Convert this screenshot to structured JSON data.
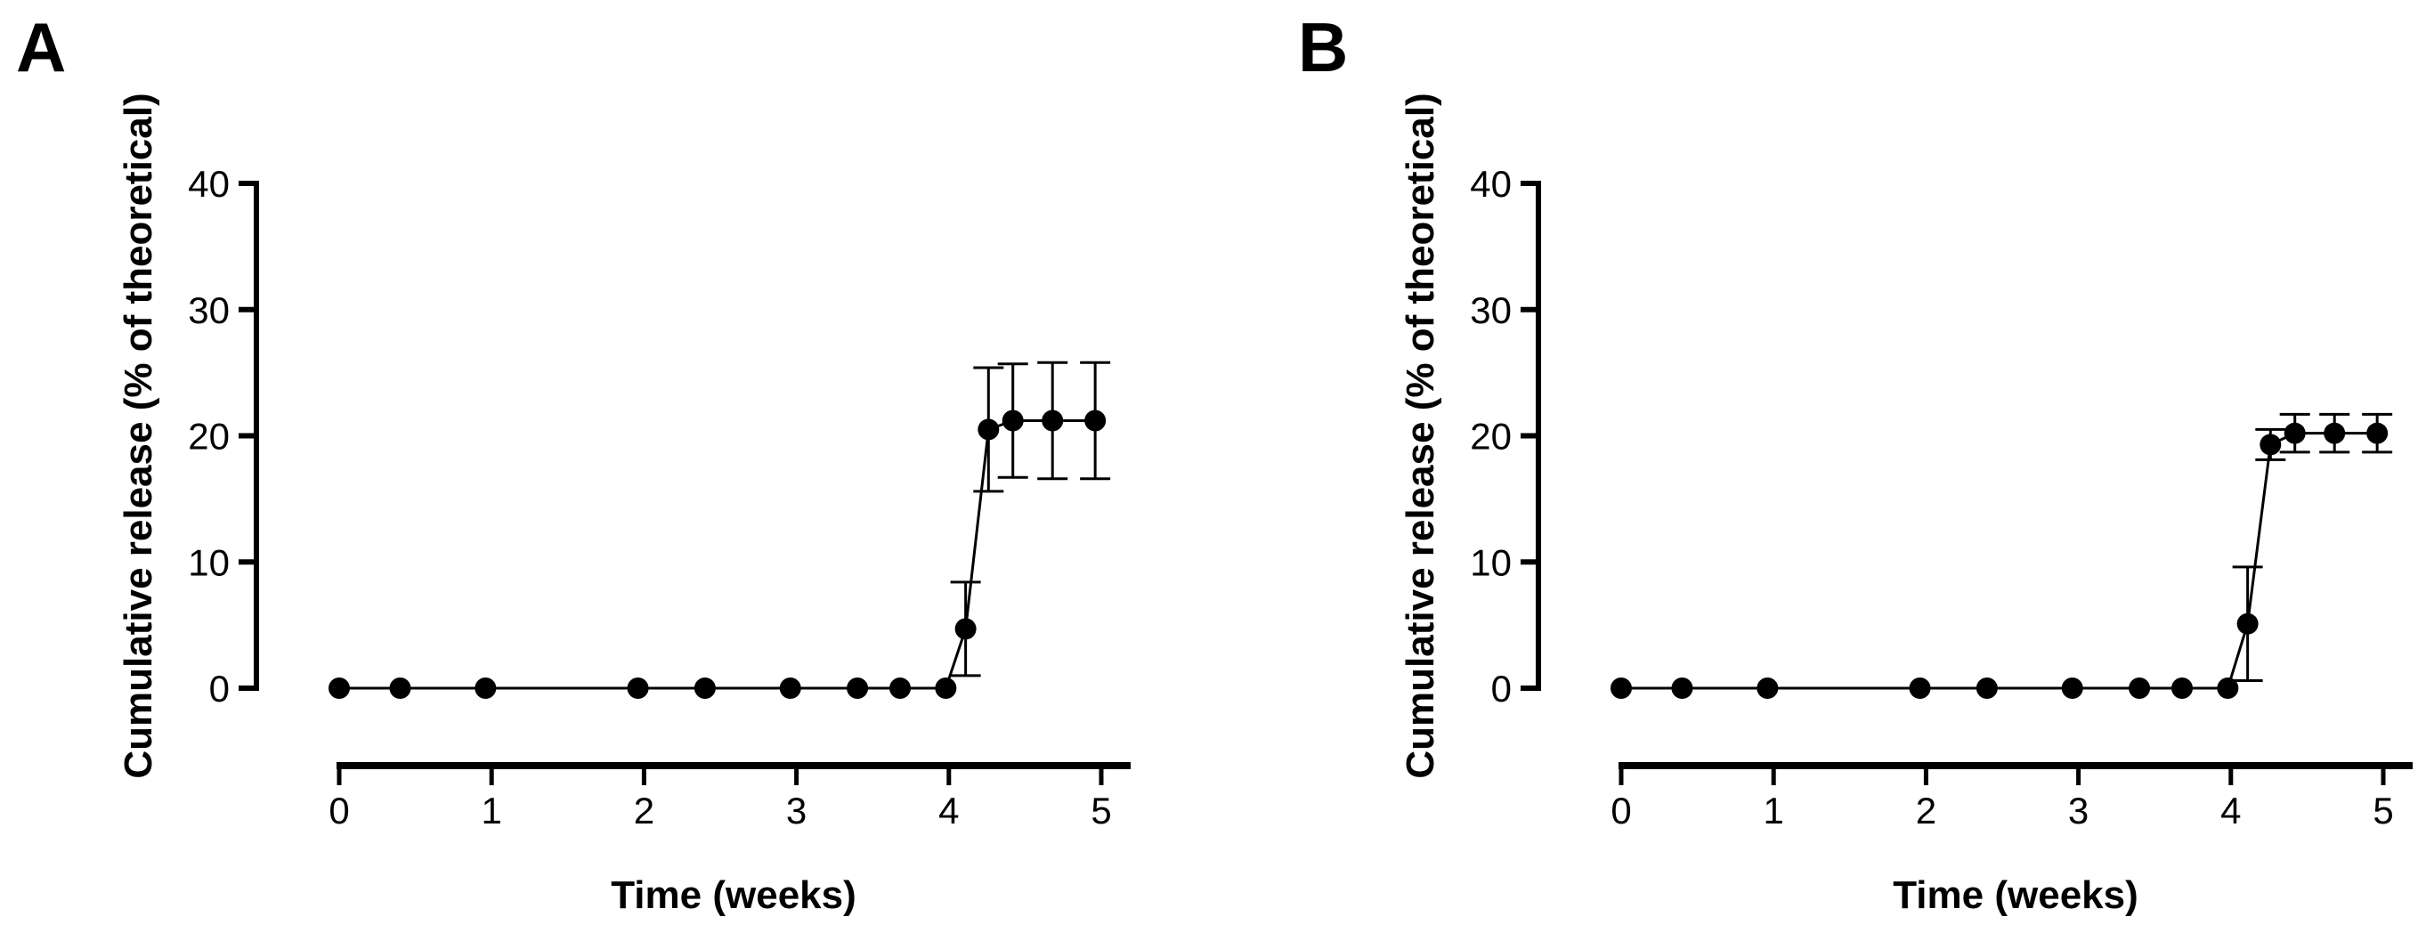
{
  "chart_data": [
    {
      "panel": "A",
      "type": "line",
      "title": "",
      "xlabel": "Time (weeks)",
      "ylabel": "Cumulative release (% of theoretical)",
      "xlim": [
        0,
        5
      ],
      "ylim": [
        0,
        40
      ],
      "xticks": [
        "0",
        "1",
        "2",
        "3",
        "4",
        "5"
      ],
      "yticks": [
        "0",
        "10",
        "20",
        "30",
        "40"
      ],
      "grid": false,
      "legend": "none",
      "series": [
        {
          "name": "A",
          "x": [
            0,
            0.4,
            0.96,
            1.96,
            2.4,
            2.96,
            3.4,
            3.68,
            3.98,
            4.11,
            4.26,
            4.42,
            4.68,
            4.96
          ],
          "y": [
            0,
            0,
            0,
            0,
            0,
            0,
            0,
            0,
            0,
            4.7,
            20.5,
            21.2,
            21.2,
            21.2
          ],
          "yerr": [
            0,
            0,
            0,
            0,
            0,
            0,
            0,
            0,
            0,
            3.7,
            4.9,
            4.5,
            4.6,
            4.6
          ]
        }
      ]
    },
    {
      "panel": "B",
      "type": "line",
      "title": "",
      "xlabel": "Time (weeks)",
      "ylabel": "Cumulative release (% of theoretical)",
      "xlim": [
        0,
        5
      ],
      "ylim": [
        0,
        40
      ],
      "xticks": [
        "0",
        "1",
        "2",
        "3",
        "4",
        "5"
      ],
      "yticks": [
        "0",
        "10",
        "20",
        "30",
        "40"
      ],
      "grid": false,
      "legend": "none",
      "series": [
        {
          "name": "B",
          "x": [
            0,
            0.4,
            0.96,
            1.96,
            2.4,
            2.96,
            3.4,
            3.68,
            3.98,
            4.11,
            4.26,
            4.42,
            4.68,
            4.96
          ],
          "y": [
            0,
            0,
            0,
            0,
            0,
            0,
            0,
            0,
            0,
            5.1,
            19.3,
            20.2,
            20.2,
            20.2
          ],
          "yerr": [
            0,
            0,
            0,
            0,
            0,
            0,
            0,
            0,
            0,
            4.5,
            1.2,
            1.5,
            1.5,
            1.5
          ]
        }
      ]
    }
  ]
}
